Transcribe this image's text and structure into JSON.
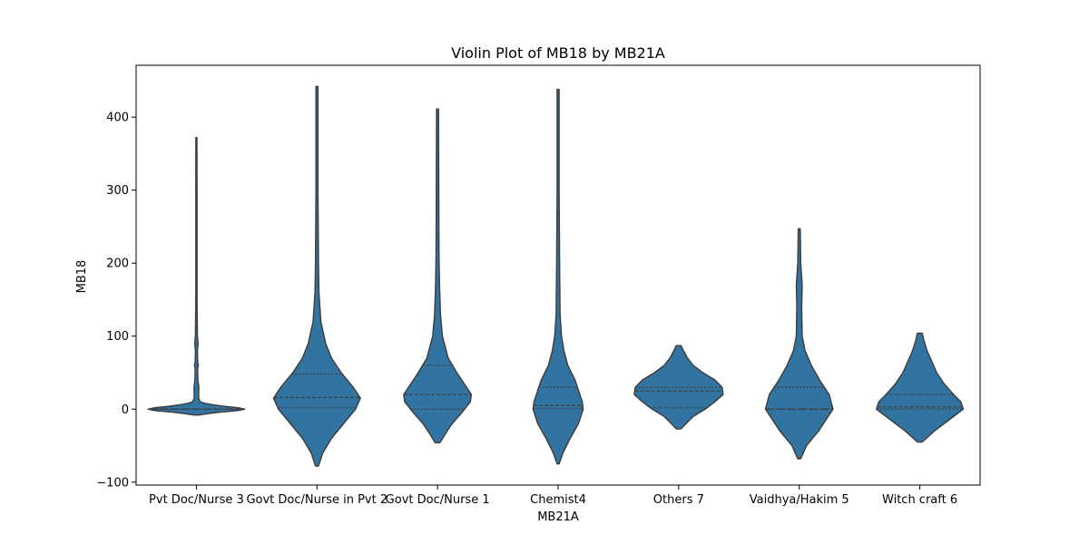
{
  "chart_data": {
    "type": "violin",
    "title": "Violin Plot of MB18 by MB21A",
    "xlabel": "MB21A",
    "ylabel": "MB18",
    "ylim": [
      -104,
      471
    ],
    "yticks": [
      -100,
      0,
      100,
      200,
      300,
      400
    ],
    "grid": false,
    "inner": "quartile",
    "colors": {
      "fill": "#3274a1",
      "edge": "#3f3f3f",
      "axis": "#000000"
    },
    "categories": [
      "Pvt Doc/Nurse 3",
      "Govt Doc/Nurse in Pvt 2",
      "Govt Doc/Nurse 1",
      "Chemist4",
      "Others 7",
      "Vaidhya/Hakim 5",
      "Witch craft 6"
    ],
    "violins": [
      {
        "category": "Pvt Doc/Nurse 3",
        "quartiles": [
          0,
          0,
          0
        ],
        "profile": [
          [
            -8,
            0.05
          ],
          [
            -6,
            0.25
          ],
          [
            -4,
            0.5
          ],
          [
            -2,
            0.85
          ],
          [
            0,
            1.0
          ],
          [
            2,
            0.85
          ],
          [
            4,
            0.55
          ],
          [
            6,
            0.35
          ],
          [
            8,
            0.18
          ],
          [
            10,
            0.08
          ],
          [
            14,
            0.05
          ],
          [
            20,
            0.045
          ],
          [
            28,
            0.05
          ],
          [
            32,
            0.045
          ],
          [
            40,
            0.03
          ],
          [
            55,
            0.025
          ],
          [
            60,
            0.04
          ],
          [
            65,
            0.025
          ],
          [
            80,
            0.02
          ],
          [
            90,
            0.035
          ],
          [
            100,
            0.02
          ],
          [
            150,
            0.012
          ],
          [
            200,
            0.012
          ],
          [
            300,
            0.012
          ],
          [
            372,
            0.01
          ]
        ]
      },
      {
        "category": "Govt Doc/Nurse in Pvt 2",
        "quartiles": [
          2,
          16,
          48
        ],
        "profile": [
          [
            -78,
            0.03
          ],
          [
            -60,
            0.12
          ],
          [
            -40,
            0.3
          ],
          [
            -20,
            0.55
          ],
          [
            0,
            0.8
          ],
          [
            15,
            0.9
          ],
          [
            30,
            0.75
          ],
          [
            50,
            0.5
          ],
          [
            70,
            0.3
          ],
          [
            90,
            0.18
          ],
          [
            120,
            0.08
          ],
          [
            160,
            0.04
          ],
          [
            200,
            0.03
          ],
          [
            300,
            0.02
          ],
          [
            442,
            0.02
          ]
        ]
      },
      {
        "category": "Govt Doc/Nurse 1",
        "quartiles": [
          0,
          20,
          60
        ],
        "profile": [
          [
            -46,
            0.05
          ],
          [
            -35,
            0.15
          ],
          [
            -20,
            0.3
          ],
          [
            -5,
            0.5
          ],
          [
            10,
            0.68
          ],
          [
            20,
            0.7
          ],
          [
            30,
            0.6
          ],
          [
            50,
            0.4
          ],
          [
            70,
            0.22
          ],
          [
            100,
            0.1
          ],
          [
            130,
            0.06
          ],
          [
            170,
            0.04
          ],
          [
            210,
            0.03
          ],
          [
            300,
            0.025
          ],
          [
            411,
            0.02
          ]
        ]
      },
      {
        "category": "Chemist4",
        "quartiles": [
          1,
          5,
          30
        ],
        "profile": [
          [
            -75,
            0.02
          ],
          [
            -60,
            0.1
          ],
          [
            -40,
            0.25
          ],
          [
            -20,
            0.42
          ],
          [
            0,
            0.52
          ],
          [
            10,
            0.5
          ],
          [
            20,
            0.45
          ],
          [
            40,
            0.35
          ],
          [
            60,
            0.2
          ],
          [
            80,
            0.12
          ],
          [
            100,
            0.07
          ],
          [
            130,
            0.04
          ],
          [
            200,
            0.03
          ],
          [
            300,
            0.02
          ],
          [
            438,
            0.02
          ]
        ]
      },
      {
        "category": "Others 7",
        "quartiles": [
          2,
          25,
          30
        ],
        "profile": [
          [
            -27,
            0.05
          ],
          [
            -20,
            0.15
          ],
          [
            -10,
            0.3
          ],
          [
            0,
            0.55
          ],
          [
            10,
            0.75
          ],
          [
            20,
            0.92
          ],
          [
            30,
            0.9
          ],
          [
            40,
            0.75
          ],
          [
            50,
            0.5
          ],
          [
            60,
            0.3
          ],
          [
            70,
            0.18
          ],
          [
            80,
            0.1
          ],
          [
            87,
            0.05
          ]
        ]
      },
      {
        "category": "Vaidhya/Hakim 5",
        "quartiles": [
          0,
          0,
          30
        ],
        "profile": [
          [
            -68,
            0.03
          ],
          [
            -50,
            0.15
          ],
          [
            -30,
            0.4
          ],
          [
            -10,
            0.6
          ],
          [
            0,
            0.7
          ],
          [
            20,
            0.62
          ],
          [
            40,
            0.42
          ],
          [
            60,
            0.25
          ],
          [
            80,
            0.12
          ],
          [
            100,
            0.06
          ],
          [
            140,
            0.05
          ],
          [
            170,
            0.06
          ],
          [
            200,
            0.03
          ],
          [
            247,
            0.02
          ]
        ]
      },
      {
        "category": "Witch craft 6",
        "quartiles": [
          0,
          3,
          20
        ],
        "profile": [
          [
            -45,
            0.05
          ],
          [
            -30,
            0.3
          ],
          [
            -15,
            0.6
          ],
          [
            0,
            0.9
          ],
          [
            10,
            0.85
          ],
          [
            20,
            0.7
          ],
          [
            35,
            0.5
          ],
          [
            50,
            0.35
          ],
          [
            65,
            0.25
          ],
          [
            80,
            0.15
          ],
          [
            95,
            0.08
          ],
          [
            104,
            0.05
          ]
        ]
      }
    ]
  }
}
